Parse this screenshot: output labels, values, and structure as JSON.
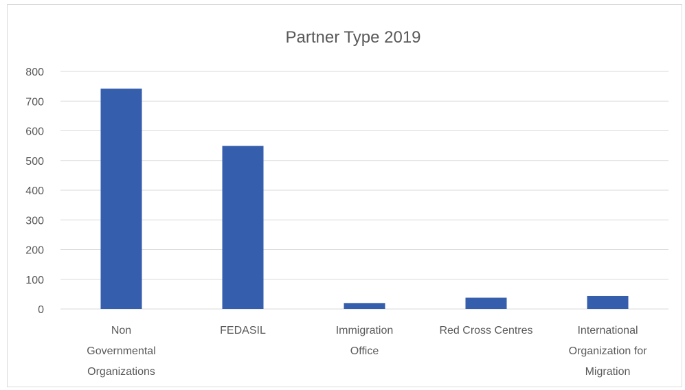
{
  "chart_data": {
    "type": "bar",
    "title": "Partner Type 2019",
    "categories": [
      [
        "Non",
        "Governmental",
        "Organizations"
      ],
      [
        "FEDASIL"
      ],
      [
        "Immigration",
        "Office"
      ],
      [
        "Red Cross Centres"
      ],
      [
        "International",
        "Organization for",
        "Migration"
      ]
    ],
    "values": [
      742,
      549,
      20,
      38,
      44
    ],
    "ylim": [
      0,
      800
    ],
    "yticks": [
      0,
      100,
      200,
      300,
      400,
      500,
      600,
      700,
      800
    ],
    "grid": true,
    "bar_color": "#355EAC",
    "grid_color": "#d9d9d9"
  }
}
